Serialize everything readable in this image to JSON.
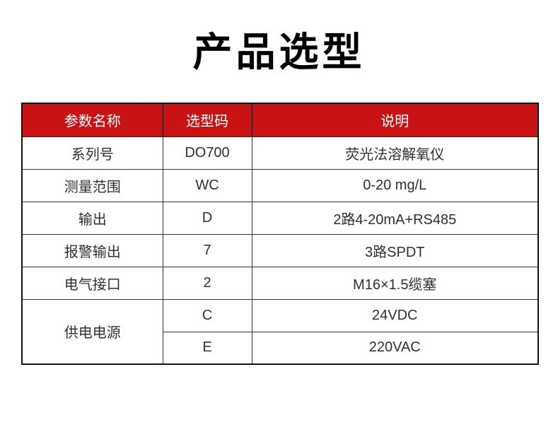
{
  "page": {
    "title": "产品选型",
    "background": "#ffffff"
  },
  "colors": {
    "header_bg": "#c91213",
    "header_text": "#ffffff",
    "body_text": "#2f2f2f",
    "border": "#1a1a1a",
    "title_text": "#000000"
  },
  "chart_data": {
    "type": "table",
    "title": "产品选型",
    "columns": [
      "参数名称",
      "选型码",
      "说明"
    ],
    "rows": [
      [
        "系列号",
        "DO700",
        "荧光法溶解氧仪"
      ],
      [
        "测量范围",
        "WC",
        "0-20 mg/L"
      ],
      [
        "输出",
        "D",
        "2路4-20mA+RS485"
      ],
      [
        "报警输出",
        "7",
        "3路SPDT"
      ],
      [
        "电气接口",
        "2",
        "M16×1.5缆塞"
      ],
      [
        "供电电源",
        "C",
        "24VDC"
      ],
      [
        "供电电源",
        "E",
        "220VAC"
      ]
    ],
    "merged_cells": [
      {
        "column": 0,
        "rows": [
          5,
          6
        ],
        "value": "供电电源"
      }
    ],
    "layout": "3-column selection table, red header row, last parameter cell spans two code/description rows"
  }
}
